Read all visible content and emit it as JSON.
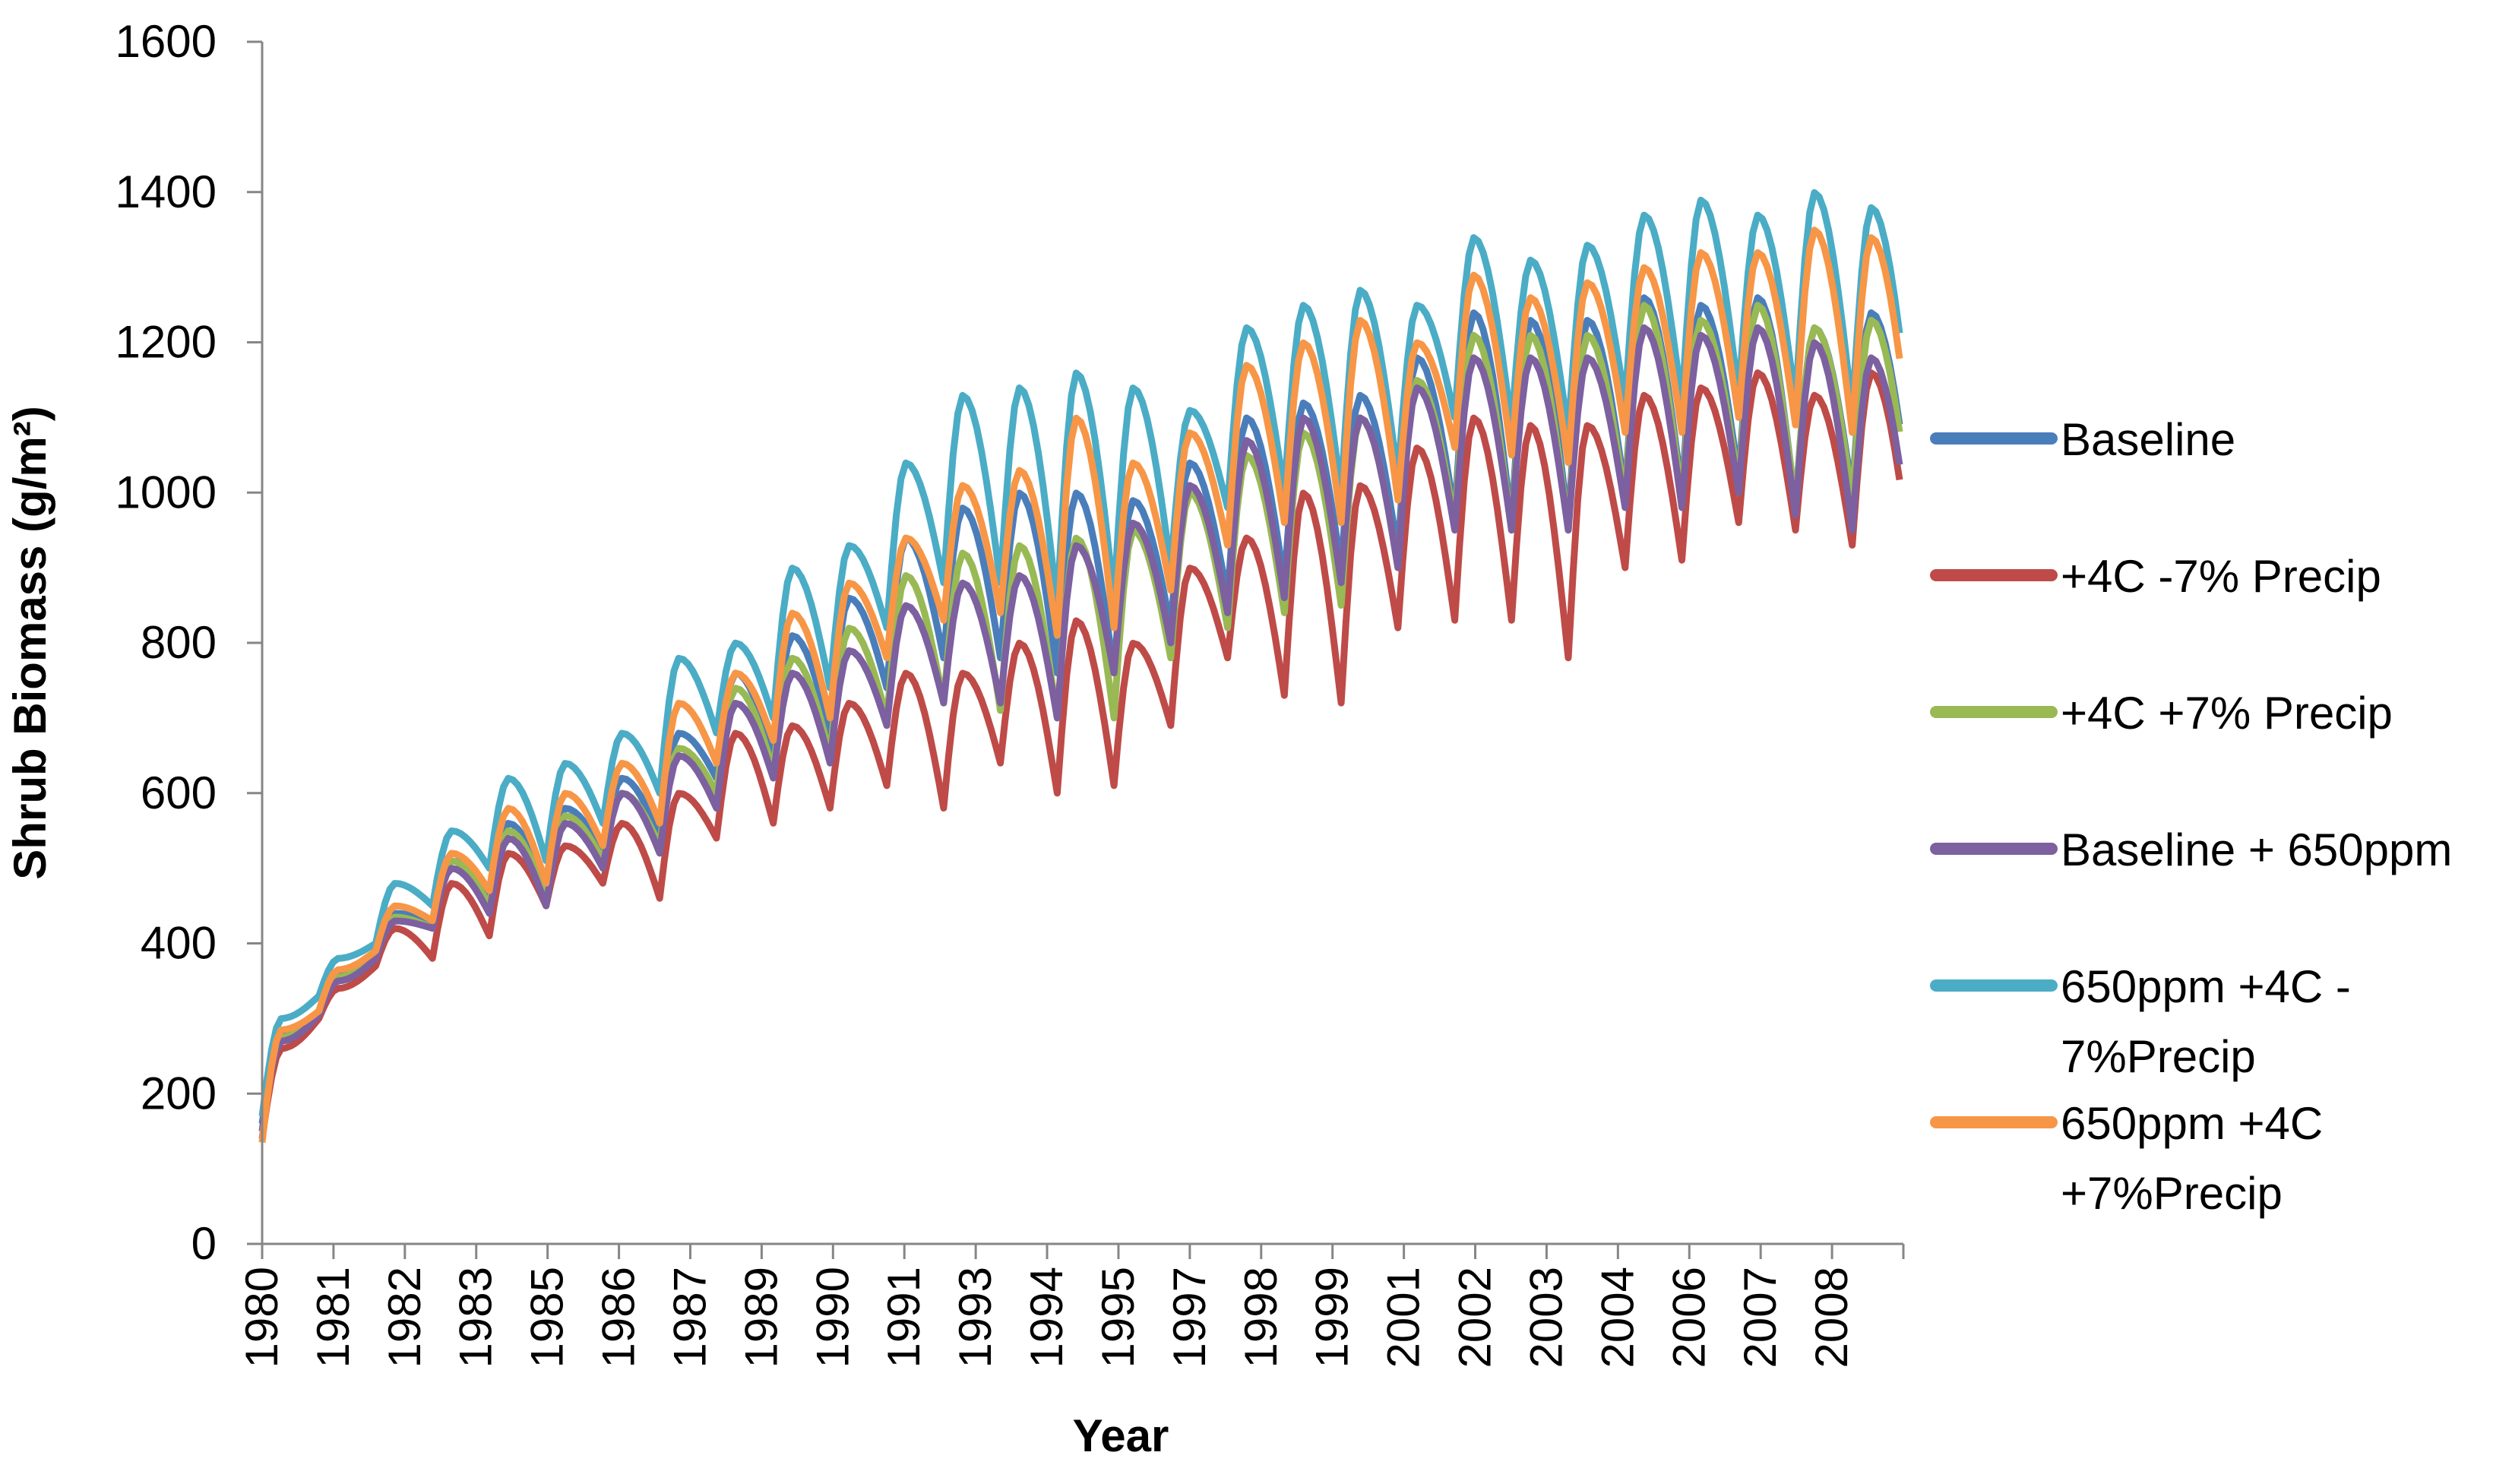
{
  "chart_data": {
    "type": "line",
    "xlabel": "Year",
    "ylabel": "Shrub Biomass (g/m²)",
    "ylim": [
      0,
      1600
    ],
    "yticks": [
      0,
      200,
      400,
      600,
      800,
      1000,
      1200,
      1400,
      1600
    ],
    "xlim": [
      1980,
      2008.9
    ],
    "x_tick_labels": [
      "1980",
      "1981",
      "1982",
      "1983",
      "1985",
      "1986",
      "1987",
      "1989",
      "1990",
      "1991",
      "1993",
      "1994",
      "1995",
      "1997",
      "1998",
      "1999",
      "2001",
      "2002",
      "2003",
      "2004",
      "2006",
      "2007",
      "2008"
    ],
    "grid": false,
    "legend_position": "right",
    "series": [
      {
        "name": "Baseline",
        "color": "#4A7EBB",
        "x": [
          1980,
          1981,
          1982,
          1983,
          1984,
          1985,
          1986,
          1987,
          1988,
          1989,
          1990,
          1991,
          1992,
          1993,
          1994,
          1995,
          1996,
          1997,
          1998,
          1999,
          2000,
          2001,
          2002,
          2003,
          2004,
          2005,
          2006,
          2007,
          2008
        ],
        "peaks": [
          280,
          360,
          440,
          520,
          560,
          580,
          620,
          680,
          760,
          810,
          860,
          940,
          980,
          1000,
          1000,
          990,
          1040,
          1100,
          1120,
          1130,
          1180,
          1240,
          1230,
          1230,
          1260,
          1250,
          1260,
          1220,
          1240
        ],
        "troughs": [
          160,
          310,
          390,
          430,
          460,
          470,
          520,
          540,
          620,
          650,
          680,
          740,
          780,
          780,
          760,
          760,
          820,
          860,
          880,
          900,
          920,
          970,
          960,
          960,
          1000,
          1000,
          1020,
          980,
          1000
        ]
      },
      {
        "name": "+4C -7% Precip",
        "color": "#BE4B48",
        "x": [
          1980,
          1981,
          1982,
          1983,
          1984,
          1985,
          1986,
          1987,
          1988,
          1989,
          1990,
          1991,
          1992,
          1993,
          1994,
          1995,
          1996,
          1997,
          1998,
          1999,
          2000,
          2001,
          2002,
          2003,
          2004,
          2005,
          2006,
          2007,
          2008
        ],
        "peaks": [
          260,
          340,
          420,
          480,
          520,
          530,
          560,
          600,
          680,
          690,
          720,
          760,
          760,
          800,
          830,
          800,
          900,
          940,
          1000,
          1010,
          1060,
          1100,
          1090,
          1090,
          1130,
          1140,
          1160,
          1130,
          1160
        ],
        "troughs": [
          140,
          300,
          370,
          380,
          410,
          450,
          480,
          460,
          540,
          560,
          580,
          610,
          580,
          640,
          600,
          610,
          690,
          780,
          730,
          720,
          820,
          830,
          830,
          780,
          900,
          910,
          960,
          950,
          930
        ]
      },
      {
        "name": "+4C +7% Precip",
        "color": "#98B954",
        "x": [
          1980,
          1981,
          1982,
          1983,
          1984,
          1985,
          1986,
          1987,
          1988,
          1989,
          1990,
          1991,
          1992,
          1993,
          1994,
          1995,
          1996,
          1997,
          1998,
          1999,
          2000,
          2001,
          2002,
          2003,
          2004,
          2005,
          2006,
          2007,
          2008
        ],
        "peaks": [
          275,
          355,
          435,
          510,
          550,
          570,
          600,
          660,
          740,
          780,
          820,
          890,
          920,
          930,
          940,
          950,
          1000,
          1050,
          1080,
          1100,
          1150,
          1210,
          1210,
          1210,
          1250,
          1230,
          1250,
          1220,
          1230
        ],
        "troughs": [
          150,
          305,
          385,
          420,
          450,
          460,
          510,
          530,
          600,
          630,
          650,
          700,
          720,
          710,
          700,
          700,
          780,
          820,
          840,
          850,
          900,
          960,
          950,
          950,
          990,
          990,
          1010,
          980,
          990
        ]
      },
      {
        "name": "Baseline + 650ppm",
        "color": "#7D60A0",
        "x": [
          1980,
          1981,
          1982,
          1983,
          1984,
          1985,
          1986,
          1987,
          1988,
          1989,
          1990,
          1991,
          1992,
          1993,
          1994,
          1995,
          1996,
          1997,
          1998,
          1999,
          2000,
          2001,
          2002,
          2003,
          2004,
          2005,
          2006,
          2007,
          2008
        ],
        "peaks": [
          270,
          350,
          430,
          500,
          540,
          560,
          600,
          650,
          720,
          760,
          790,
          850,
          880,
          890,
          930,
          960,
          1010,
          1070,
          1100,
          1100,
          1140,
          1180,
          1180,
          1180,
          1220,
          1210,
          1220,
          1200,
          1180
        ],
        "troughs": [
          150,
          305,
          380,
          420,
          440,
          450,
          500,
          520,
          580,
          620,
          640,
          690,
          720,
          720,
          700,
          760,
          800,
          840,
          860,
          880,
          900,
          950,
          950,
          950,
          980,
          980,
          1000,
          970,
          950
        ]
      },
      {
        "name": "650ppm  +4C -7%Precip",
        "color": "#4BACC6",
        "x": [
          1980,
          1981,
          1982,
          1983,
          1984,
          1985,
          1986,
          1987,
          1988,
          1989,
          1990,
          1991,
          1992,
          1993,
          1994,
          1995,
          1996,
          1997,
          1998,
          1999,
          2000,
          2001,
          2002,
          2003,
          2004,
          2005,
          2006,
          2007,
          2008
        ],
        "peaks": [
          300,
          380,
          480,
          550,
          620,
          640,
          680,
          780,
          800,
          900,
          930,
          1040,
          1130,
          1140,
          1160,
          1140,
          1110,
          1220,
          1250,
          1270,
          1250,
          1340,
          1310,
          1330,
          1370,
          1390,
          1370,
          1400,
          1380
        ],
        "troughs": [
          170,
          330,
          400,
          450,
          500,
          510,
          560,
          600,
          680,
          700,
          740,
          820,
          880,
          880,
          850,
          860,
          900,
          980,
          1000,
          1000,
          1020,
          1100,
          1090,
          1080,
          1120,
          1120,
          1130,
          1120,
          1110
        ]
      },
      {
        "name": "650ppm +4C +7%Precip",
        "color": "#F79646",
        "x": [
          1980,
          1981,
          1982,
          1983,
          1984,
          1985,
          1986,
          1987,
          1988,
          1989,
          1990,
          1991,
          1992,
          1993,
          1994,
          1995,
          1996,
          1997,
          1998,
          1999,
          2000,
          2001,
          2002,
          2003,
          2004,
          2005,
          2006,
          2007,
          2008
        ],
        "peaks": [
          285,
          365,
          450,
          520,
          580,
          600,
          640,
          720,
          760,
          840,
          880,
          940,
          1010,
          1030,
          1100,
          1040,
          1080,
          1170,
          1200,
          1230,
          1200,
          1290,
          1260,
          1280,
          1300,
          1320,
          1320,
          1350,
          1340
        ],
        "troughs": [
          135,
          310,
          390,
          430,
          470,
          480,
          530,
          560,
          640,
          670,
          700,
          780,
          830,
          840,
          810,
          820,
          870,
          930,
          960,
          960,
          990,
          1060,
          1050,
          1040,
          1080,
          1080,
          1100,
          1090,
          1080
        ]
      }
    ],
    "legend": [
      "Baseline",
      "+4C -7% Precip",
      "+4C +7% Precip",
      "Baseline + 650ppm",
      "650ppm  +4C -7%Precip",
      "650ppm +4C +7%Precip"
    ]
  },
  "legend_display": {
    "entries": [
      {
        "lines": [
          "Baseline"
        ]
      },
      {
        "lines": [
          "+4C -7% Precip"
        ]
      },
      {
        "lines": [
          "+4C +7% Precip"
        ]
      },
      {
        "lines": [
          "Baseline + 650ppm"
        ]
      },
      {
        "lines": [
          "650ppm  +4C -",
          "7%Precip"
        ]
      },
      {
        "lines": [
          "650ppm +4C",
          "+7%Precip"
        ]
      }
    ]
  }
}
